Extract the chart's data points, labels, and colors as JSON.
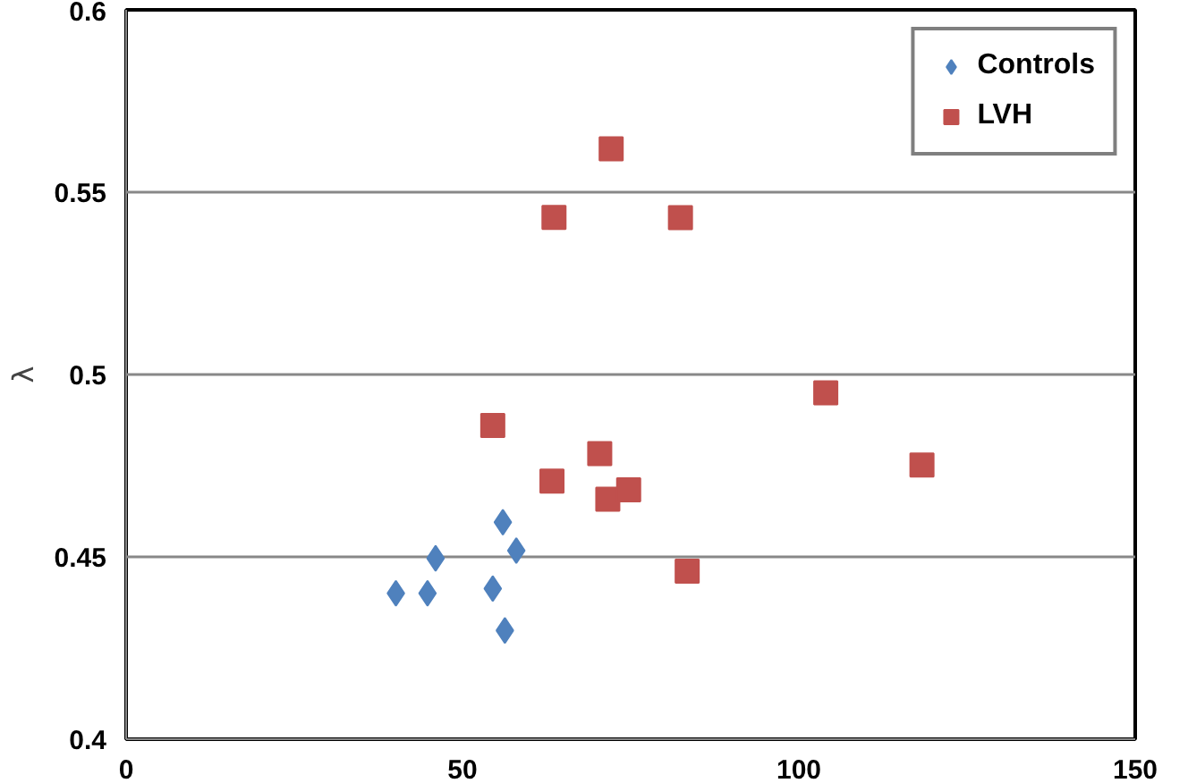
{
  "chart_data": {
    "type": "scatter",
    "ylabel": "λ",
    "xlim": [
      0,
      150
    ],
    "ylim": [
      0.4,
      0.6
    ],
    "xticks": [
      0,
      50,
      100,
      150
    ],
    "yticks": [
      0.4,
      0.45,
      {
        "value": 0.5,
        "label": "0.5"
      },
      0.55,
      0.6
    ],
    "grid": "y",
    "legend": "top right",
    "series": [
      {
        "name": "Controls",
        "color": "#4f81bd",
        "marker": "diamond",
        "x": [
          40.1,
          44.8,
          46,
          54.5,
          56.3,
          56,
          58
        ],
        "values": [
          0.44,
          0.44,
          0.4496,
          0.4413,
          0.4298,
          0.4595,
          0.4517
        ]
      },
      {
        "name": "LVH",
        "color": "#c0504d",
        "marker": "square",
        "x": [
          72.1,
          63.6,
          82.4,
          54.5,
          70.4,
          63.3,
          71.6,
          74.7,
          83.4,
          104,
          118.3
        ],
        "values": [
          0.5619,
          0.5431,
          0.543,
          0.486,
          0.4783,
          0.4708,
          0.4658,
          0.4684,
          0.4461,
          0.495,
          0.4752
        ]
      }
    ]
  }
}
